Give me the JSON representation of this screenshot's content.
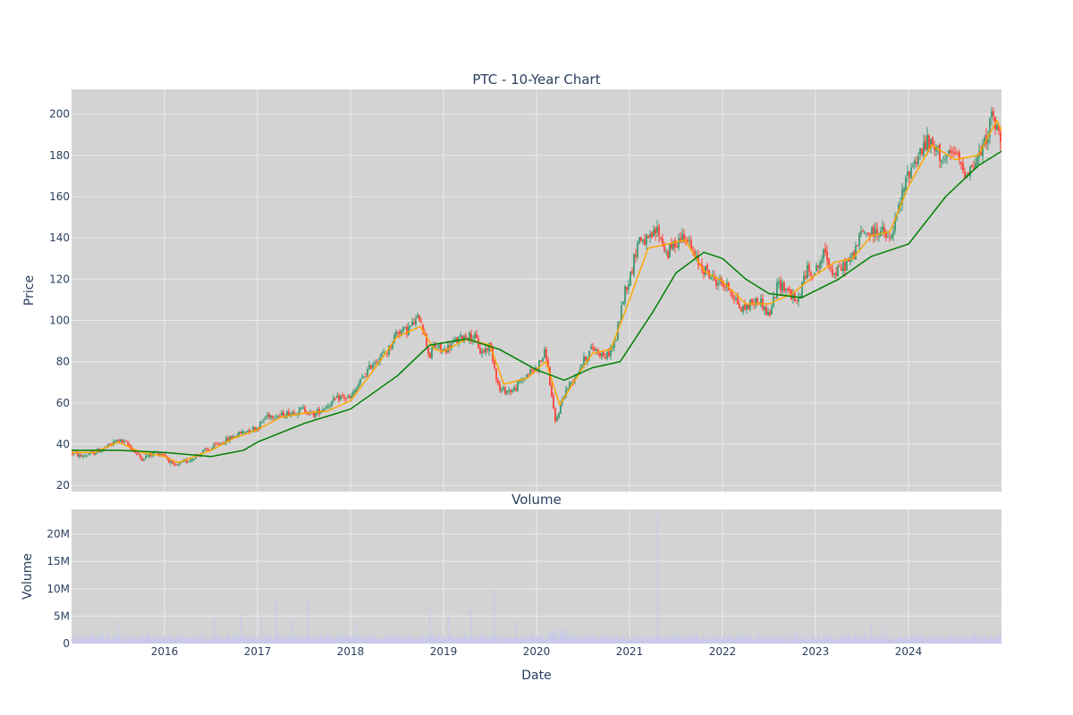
{
  "chart_data": [
    {
      "type": "candlestick",
      "title": "PTC - 10-Year Chart",
      "ylabel": "Price",
      "xlabel": "",
      "ylim": [
        17,
        212
      ],
      "xlim": [
        2015.0,
        2025.0
      ],
      "grid": true,
      "x_ticks": [
        2016,
        2017,
        2018,
        2019,
        2020,
        2021,
        2022,
        2023,
        2024
      ],
      "y_ticks": [
        20,
        40,
        60,
        80,
        100,
        120,
        140,
        160,
        180,
        200
      ],
      "price_path": [
        [
          2015.0,
          36
        ],
        [
          2015.1,
          34
        ],
        [
          2015.25,
          36
        ],
        [
          2015.4,
          39
        ],
        [
          2015.5,
          42
        ],
        [
          2015.6,
          40
        ],
        [
          2015.75,
          33
        ],
        [
          2015.9,
          36
        ],
        [
          2016.0,
          35
        ],
        [
          2016.1,
          29
        ],
        [
          2016.25,
          32
        ],
        [
          2016.4,
          36
        ],
        [
          2016.5,
          38
        ],
        [
          2016.75,
          44
        ],
        [
          2016.9,
          47
        ],
        [
          2017.0,
          48
        ],
        [
          2017.1,
          54
        ],
        [
          2017.25,
          54
        ],
        [
          2017.5,
          57
        ],
        [
          2017.6,
          54
        ],
        [
          2017.75,
          59
        ],
        [
          2017.9,
          63
        ],
        [
          2018.0,
          62
        ],
        [
          2018.1,
          70
        ],
        [
          2018.25,
          80
        ],
        [
          2018.4,
          85
        ],
        [
          2018.5,
          95
        ],
        [
          2018.6,
          95
        ],
        [
          2018.75,
          102
        ],
        [
          2018.85,
          82
        ],
        [
          2018.9,
          88
        ],
        [
          2019.0,
          85
        ],
        [
          2019.1,
          89
        ],
        [
          2019.25,
          93
        ],
        [
          2019.35,
          91
        ],
        [
          2019.4,
          84
        ],
        [
          2019.5,
          88
        ],
        [
          2019.6,
          66
        ],
        [
          2019.75,
          66
        ],
        [
          2019.9,
          74
        ],
        [
          2020.0,
          77
        ],
        [
          2020.1,
          85
        ],
        [
          2020.2,
          50
        ],
        [
          2020.3,
          65
        ],
        [
          2020.4,
          72
        ],
        [
          2020.5,
          80
        ],
        [
          2020.6,
          87
        ],
        [
          2020.75,
          82
        ],
        [
          2020.85,
          90
        ],
        [
          2020.95,
          115
        ],
        [
          2021.0,
          120
        ],
        [
          2021.1,
          140
        ],
        [
          2021.2,
          138
        ],
        [
          2021.3,
          144
        ],
        [
          2021.4,
          132
        ],
        [
          2021.5,
          138
        ],
        [
          2021.6,
          142
        ],
        [
          2021.7,
          130
        ],
        [
          2021.8,
          125
        ],
        [
          2021.9,
          120
        ],
        [
          2022.0,
          118
        ],
        [
          2022.1,
          114
        ],
        [
          2022.2,
          105
        ],
        [
          2022.3,
          108
        ],
        [
          2022.4,
          110
        ],
        [
          2022.5,
          102
        ],
        [
          2022.6,
          118
        ],
        [
          2022.7,
          115
        ],
        [
          2022.8,
          108
        ],
        [
          2022.9,
          124
        ],
        [
          2023.0,
          124
        ],
        [
          2023.1,
          133
        ],
        [
          2023.2,
          122
        ],
        [
          2023.3,
          126
        ],
        [
          2023.4,
          131
        ],
        [
          2023.5,
          143
        ],
        [
          2023.6,
          142
        ],
        [
          2023.7,
          144
        ],
        [
          2023.8,
          138
        ],
        [
          2023.9,
          155
        ],
        [
          2024.0,
          172
        ],
        [
          2024.1,
          180
        ],
        [
          2024.2,
          186
        ],
        [
          2024.3,
          182
        ],
        [
          2024.4,
          178
        ],
        [
          2024.5,
          181
        ],
        [
          2024.6,
          172
        ],
        [
          2024.7,
          175
        ],
        [
          2024.8,
          183
        ],
        [
          2024.9,
          199
        ],
        [
          2025.0,
          186
        ]
      ],
      "series": [
        {
          "name": "",
          "color": "#ffa500",
          "values": [
            [
              2015.0,
              36
            ],
            [
              2015.25,
              36
            ],
            [
              2015.5,
              41
            ],
            [
              2015.75,
              36
            ],
            [
              2016.0,
              34
            ],
            [
              2016.15,
              31
            ],
            [
              2016.5,
              37
            ],
            [
              2016.75,
              43
            ],
            [
              2017.0,
              47
            ],
            [
              2017.25,
              53
            ],
            [
              2017.5,
              55
            ],
            [
              2017.75,
              56
            ],
            [
              2018.0,
              61
            ],
            [
              2018.25,
              76
            ],
            [
              2018.5,
              92
            ],
            [
              2018.75,
              97
            ],
            [
              2018.9,
              86
            ],
            [
              2019.0,
              85
            ],
            [
              2019.25,
              91
            ],
            [
              2019.5,
              88
            ],
            [
              2019.65,
              69
            ],
            [
              2019.9,
              72
            ],
            [
              2020.1,
              80
            ],
            [
              2020.25,
              59
            ],
            [
              2020.4,
              70
            ],
            [
              2020.6,
              84
            ],
            [
              2020.8,
              86
            ],
            [
              2021.0,
              110
            ],
            [
              2021.2,
              135
            ],
            [
              2021.4,
              137
            ],
            [
              2021.6,
              139
            ],
            [
              2021.8,
              124
            ],
            [
              2022.0,
              119
            ],
            [
              2022.25,
              108
            ],
            [
              2022.5,
              108
            ],
            [
              2022.75,
              113
            ],
            [
              2023.0,
              122
            ],
            [
              2023.2,
              128
            ],
            [
              2023.4,
              130
            ],
            [
              2023.6,
              141
            ],
            [
              2023.8,
              143
            ],
            [
              2024.0,
              165
            ],
            [
              2024.25,
              185
            ],
            [
              2024.5,
              178
            ],
            [
              2024.75,
              180
            ],
            [
              2024.95,
              197
            ],
            [
              2025.0,
              192
            ]
          ]
        },
        {
          "name": "",
          "color": "#008000",
          "values": [
            [
              2015.0,
              37
            ],
            [
              2015.5,
              37
            ],
            [
              2016.0,
              36
            ],
            [
              2016.5,
              34
            ],
            [
              2016.85,
              37
            ],
            [
              2017.0,
              41
            ],
            [
              2017.5,
              50
            ],
            [
              2018.0,
              57
            ],
            [
              2018.5,
              73
            ],
            [
              2018.85,
              88
            ],
            [
              2019.25,
              91
            ],
            [
              2019.6,
              86
            ],
            [
              2020.0,
              76
            ],
            [
              2020.3,
              71
            ],
            [
              2020.6,
              77
            ],
            [
              2020.9,
              80
            ],
            [
              2021.25,
              104
            ],
            [
              2021.5,
              123
            ],
            [
              2021.8,
              133
            ],
            [
              2022.0,
              130
            ],
            [
              2022.25,
              120
            ],
            [
              2022.5,
              113
            ],
            [
              2022.85,
              111
            ],
            [
              2023.25,
              120
            ],
            [
              2023.6,
              131
            ],
            [
              2024.0,
              137
            ],
            [
              2024.4,
              160
            ],
            [
              2024.75,
              175
            ],
            [
              2025.0,
              182
            ]
          ]
        }
      ]
    },
    {
      "type": "bar",
      "title": "Volume",
      "ylabel": "Volume",
      "xlabel": "Date",
      "ylim": [
        0,
        24500000
      ],
      "xlim": [
        2015.0,
        2025.0
      ],
      "grid": true,
      "color": "#c8c8ec",
      "x_ticks": [
        2016,
        2017,
        2018,
        2019,
        2020,
        2021,
        2022,
        2023,
        2024
      ],
      "y_ticks": [
        0,
        5000000,
        10000000,
        15000000,
        20000000
      ],
      "y_tick_labels": [
        "0",
        "5M",
        "10M",
        "15M",
        "20M"
      ],
      "baseline_volume": 1000000,
      "spikes": [
        [
          2015.48,
          4000000
        ],
        [
          2015.52,
          3700000
        ],
        [
          2016.54,
          4800000
        ],
        [
          2016.82,
          5700000
        ],
        [
          2017.04,
          5000000
        ],
        [
          2017.2,
          8200000
        ],
        [
          2017.38,
          4500000
        ],
        [
          2017.55,
          8800000
        ],
        [
          2018.05,
          4200000
        ],
        [
          2018.85,
          7000000
        ],
        [
          2019.05,
          5200000
        ],
        [
          2019.3,
          6000000
        ],
        [
          2019.55,
          10000000
        ],
        [
          2019.79,
          4500000
        ],
        [
          2020.2,
          2500000
        ],
        [
          2021.3,
          23500000
        ],
        [
          2021.72,
          2700000
        ],
        [
          2022.8,
          2900000
        ],
        [
          2023.6,
          3300000
        ],
        [
          2023.75,
          3500000
        ]
      ]
    }
  ]
}
